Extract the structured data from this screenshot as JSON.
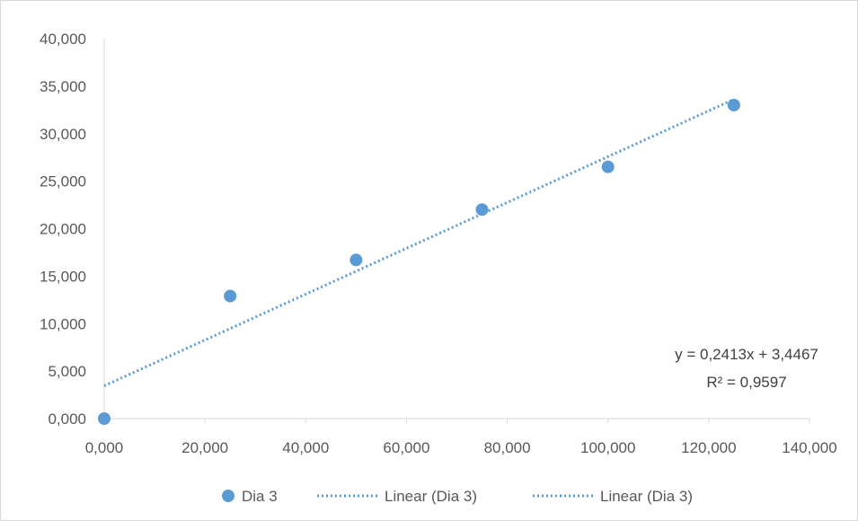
{
  "chart_data": {
    "type": "scatter",
    "title": "",
    "xlabel": "",
    "ylabel": "",
    "xlim": [
      0,
      140
    ],
    "ylim": [
      0,
      40
    ],
    "x_ticks": [
      "0,000",
      "20,000",
      "40,000",
      "60,000",
      "80,000",
      "100,000",
      "120,000",
      "140,000"
    ],
    "y_ticks": [
      "0,000",
      "5,000",
      "10,000",
      "15,000",
      "20,000",
      "25,000",
      "30,000",
      "35,000",
      "40,000"
    ],
    "series": [
      {
        "name": "Dia 3",
        "x": [
          0,
          25,
          50,
          75,
          100,
          125
        ],
        "y": [
          0,
          12.9,
          16.7,
          22.0,
          26.5,
          33.0
        ],
        "color": "#5b9bd5"
      }
    ],
    "trendline": {
      "type": "linear",
      "slope": 0.2413,
      "intercept": 3.4467,
      "x_range": [
        0,
        125
      ],
      "color": "#5b9bd5",
      "equation_label": "y = 0,2413x + 3,4467",
      "r2_label": "R² = 0,9597"
    },
    "legend": {
      "position": "bottom",
      "entries": [
        "Dia 3",
        "Linear (Dia 3)",
        "Linear (Dia 3)"
      ]
    },
    "grid": false
  }
}
